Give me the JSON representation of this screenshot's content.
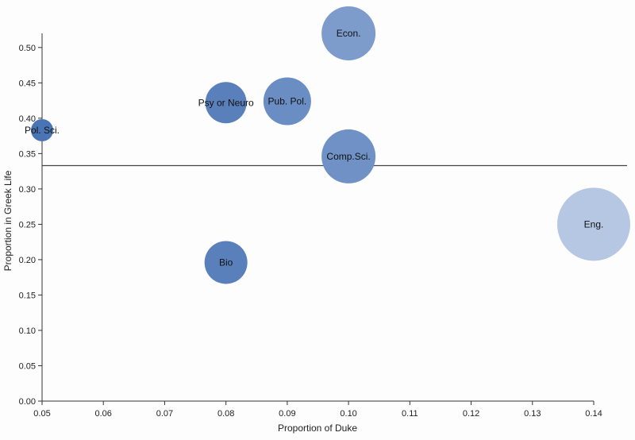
{
  "chart_data": {
    "type": "scatter",
    "title": "",
    "xlabel": "Proportion of Duke",
    "ylabel": "Proportion in Greek Life",
    "xlim": [
      0.05,
      0.14
    ],
    "ylim": [
      0.0,
      0.52
    ],
    "x_ticks": [
      "0.05",
      "0.06",
      "0.07",
      "0.08",
      "0.09",
      "0.10",
      "0.11",
      "0.12",
      "0.13",
      "0.14"
    ],
    "y_ticks": [
      "0.00",
      "0.05",
      "0.10",
      "0.15",
      "0.20",
      "0.25",
      "0.30",
      "0.35",
      "0.40",
      "0.45",
      "0.50"
    ],
    "reference_line_y": 0.333,
    "points": [
      {
        "label": "Pol. Sci.",
        "x": 0.05,
        "y": 0.383,
        "color": "#4a75b5"
      },
      {
        "label": "Psy or Neuro",
        "x": 0.08,
        "y": 0.422,
        "color": "#5a80bb"
      },
      {
        "label": "Pub. Pol.",
        "x": 0.09,
        "y": 0.424,
        "color": "#6a8dc3"
      },
      {
        "label": "Econ.",
        "x": 0.1,
        "y": 0.52,
        "color": "#7d9bcb"
      },
      {
        "label": "Comp.Sci.",
        "x": 0.1,
        "y": 0.346,
        "color": "#6f91c6"
      },
      {
        "label": "Bio",
        "x": 0.08,
        "y": 0.196,
        "color": "#5a80bb"
      },
      {
        "label": "Eng.",
        "x": 0.14,
        "y": 0.25,
        "color": "#b5c7e2"
      }
    ]
  }
}
